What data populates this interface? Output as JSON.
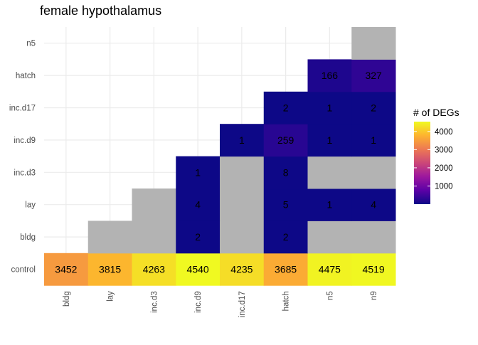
{
  "chart_data": {
    "type": "heatmap",
    "title": "female hypothalamus",
    "xlabel": "",
    "ylabel": "",
    "x_categories": [
      "bldg",
      "lay",
      "inc.d3",
      "inc.d9",
      "inc.d17",
      "hatch",
      "n5",
      "n9"
    ],
    "y_categories": [
      "control",
      "bldg",
      "lay",
      "inc.d3",
      "inc.d9",
      "inc.d17",
      "hatch",
      "n5"
    ],
    "cells": [
      {
        "x": "bldg",
        "y": "control",
        "value": 3452
      },
      {
        "x": "lay",
        "y": "control",
        "value": 3815
      },
      {
        "x": "inc.d3",
        "y": "control",
        "value": 4263
      },
      {
        "x": "inc.d9",
        "y": "control",
        "value": 4540
      },
      {
        "x": "inc.d17",
        "y": "control",
        "value": 4235
      },
      {
        "x": "hatch",
        "y": "control",
        "value": 3685
      },
      {
        "x": "n5",
        "y": "control",
        "value": 4475
      },
      {
        "x": "n9",
        "y": "control",
        "value": 4519
      },
      {
        "x": "lay",
        "y": "bldg",
        "value": null
      },
      {
        "x": "inc.d3",
        "y": "bldg",
        "value": null
      },
      {
        "x": "inc.d9",
        "y": "bldg",
        "value": 2
      },
      {
        "x": "inc.d17",
        "y": "bldg",
        "value": null
      },
      {
        "x": "hatch",
        "y": "bldg",
        "value": 2
      },
      {
        "x": "n5",
        "y": "bldg",
        "value": null
      },
      {
        "x": "n9",
        "y": "bldg",
        "value": null
      },
      {
        "x": "inc.d3",
        "y": "lay",
        "value": null
      },
      {
        "x": "inc.d9",
        "y": "lay",
        "value": 4
      },
      {
        "x": "inc.d17",
        "y": "lay",
        "value": null
      },
      {
        "x": "hatch",
        "y": "lay",
        "value": 5
      },
      {
        "x": "n5",
        "y": "lay",
        "value": 1
      },
      {
        "x": "n9",
        "y": "lay",
        "value": 4
      },
      {
        "x": "inc.d9",
        "y": "inc.d3",
        "value": 1
      },
      {
        "x": "inc.d17",
        "y": "inc.d3",
        "value": null
      },
      {
        "x": "hatch",
        "y": "inc.d3",
        "value": 8
      },
      {
        "x": "n5",
        "y": "inc.d3",
        "value": null
      },
      {
        "x": "n9",
        "y": "inc.d3",
        "value": null
      },
      {
        "x": "inc.d17",
        "y": "inc.d9",
        "value": 1
      },
      {
        "x": "hatch",
        "y": "inc.d9",
        "value": 259
      },
      {
        "x": "n5",
        "y": "inc.d9",
        "value": 1
      },
      {
        "x": "n9",
        "y": "inc.d9",
        "value": 1
      },
      {
        "x": "hatch",
        "y": "inc.d17",
        "value": 2
      },
      {
        "x": "n5",
        "y": "inc.d17",
        "value": 1
      },
      {
        "x": "n9",
        "y": "inc.d17",
        "value": 2
      },
      {
        "x": "n5",
        "y": "hatch",
        "value": 166
      },
      {
        "x": "n9",
        "y": "hatch",
        "value": 327
      },
      {
        "x": "n9",
        "y": "n5",
        "value": null
      }
    ],
    "legend": {
      "title": "# of DEGs",
      "ticks": [
        1000,
        2000,
        3000,
        4000
      ],
      "range": [
        1,
        4540
      ],
      "placement": "right"
    },
    "colors": {
      "na": "#b3b3b3",
      "scale": [
        "#0d0887",
        "#5c01a6",
        "#9c179e",
        "#cc4778",
        "#ed7953",
        "#fdb32f",
        "#f0f921"
      ],
      "grid": "#ebebeb"
    },
    "grid": true
  }
}
